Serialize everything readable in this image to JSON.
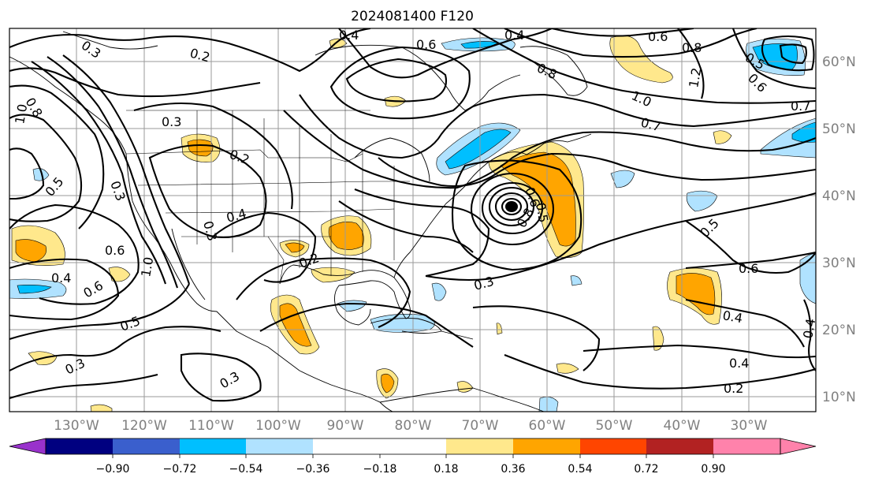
{
  "title": "2024081400 F120",
  "lon_labels": [
    "130°W",
    "120°W",
    "110°W",
    "100°W",
    "90°W",
    "80°W",
    "70°W",
    "60°W",
    "50°W",
    "40°W",
    "30°W"
  ],
  "lat_labels": [
    "60°N",
    "50°N",
    "40°N",
    "30°N",
    "20°N",
    "10°N"
  ],
  "colorbar": {
    "ticks": [
      "−0.90",
      "−0.72",
      "−0.54",
      "−0.36",
      "−0.18",
      "0.18",
      "0.36",
      "0.54",
      "0.72",
      "0.90"
    ],
    "colors": [
      "#9932cc",
      "#000080",
      "#3a5fcd",
      "#00bfff",
      "#b0e2ff",
      "#ffffff",
      "#ffe88c",
      "#ffa500",
      "#ff4500",
      "#b22222",
      "#ff82ab"
    ]
  },
  "contour_labels": {
    "c1": "0.3",
    "c2": "0.2",
    "c3": "0.4",
    "c4": "0.6",
    "c5": "0.4",
    "c6": "0.6",
    "c7": "0.8",
    "c8": "1.0",
    "c9": "0.8",
    "c10": "1.2",
    "c11": "0.5",
    "c12": "0.6",
    "c13": "0.7",
    "c14": "0.7",
    "c15": "0.8",
    "c16": "1.0",
    "c17": "0.5",
    "c18": "0.3",
    "c19": "0.2",
    "c20": "0.3",
    "c21": "0.4",
    "c22": "0.6",
    "c23": "0.4",
    "c24": "0.6",
    "c25": "0.5",
    "c26": "1.0",
    "c27": "0.3",
    "c28": "0.3",
    "c29": "0.2",
    "c30": "0.3",
    "c31": "0.6",
    "c32": "0.5",
    "c33": "0.8",
    "c34": "0.5",
    "c35": "0.6",
    "c36": "0.4",
    "c37": "0.4",
    "c38": "0.2",
    "c39": "0.4",
    "c40": "0.3"
  }
}
